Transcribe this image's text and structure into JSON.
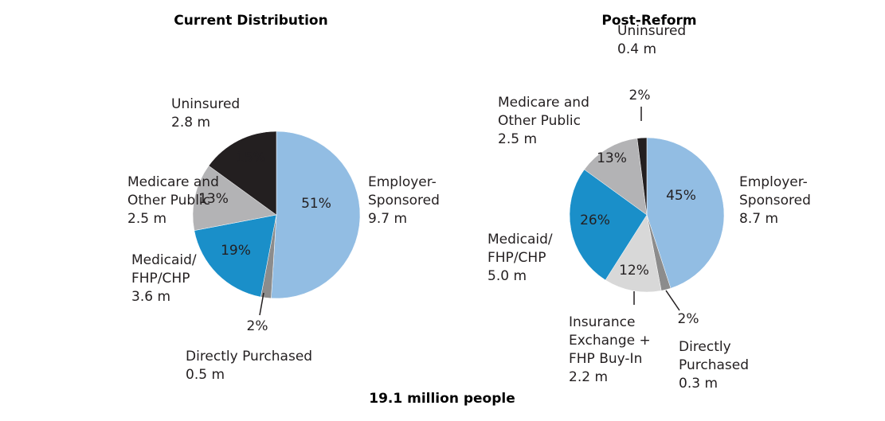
{
  "chart_data": [
    {
      "type": "pie",
      "title": "Current Distribution",
      "categories": [
        "Employer-\nSponsored",
        "Directly Purchased",
        "Medicaid/\nFHP/CHP",
        "Medicare and\nOther Public",
        "Uninsured"
      ],
      "amounts": [
        "9.7 m",
        "0.5 m",
        "3.6 m",
        "2.5 m",
        "2.8 m"
      ],
      "values": [
        51,
        2,
        19,
        13,
        15
      ],
      "value_labels": [
        "51%",
        "2%",
        "19%",
        "13%",
        "15%"
      ],
      "colors": [
        "#92bde3",
        "#8c8c8c",
        "#1a8fc9",
        "#b3b3b5",
        "#231f20"
      ]
    },
    {
      "type": "pie",
      "title": "Post-Reform",
      "categories": [
        "Employer-\nSponsored",
        "Directly\nPurchased",
        "Insurance\nExchange +\nFHP Buy-In",
        "Medicaid/\nFHP/CHP",
        "Medicare and\nOther Public",
        "Uninsured"
      ],
      "amounts": [
        "8.7 m",
        "0.3 m",
        "2.2 m",
        "5.0 m",
        "2.5 m",
        "0.4 m"
      ],
      "values": [
        45,
        2,
        12,
        26,
        13,
        2
      ],
      "value_labels": [
        "45%",
        "2%",
        "12%",
        "26%",
        "13%",
        "2%"
      ],
      "colors": [
        "#92bde3",
        "#8c8c8c",
        "#d8d8d8",
        "#1a8fc9",
        "#b3b3b5",
        "#231f20"
      ]
    }
  ],
  "caption": "19.1 million people"
}
